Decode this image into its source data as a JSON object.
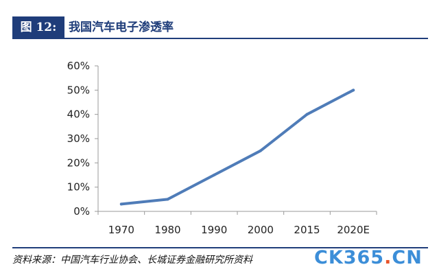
{
  "header": {
    "figure_label": "图 12:",
    "title": "我国汽车电子渗透率"
  },
  "chart_data": {
    "type": "line",
    "categories": [
      "1970",
      "1980",
      "1990",
      "2000",
      "2015",
      "2020E"
    ],
    "values": [
      3,
      5,
      15,
      25,
      40,
      50
    ],
    "y_ticks": [
      "0%",
      "10%",
      "20%",
      "30%",
      "40%",
      "50%",
      "60%"
    ],
    "ylim": [
      0,
      60
    ],
    "line_color": "#4f7cb8",
    "grid": false,
    "legend": "none"
  },
  "source": "资料来源：中国汽车行业协会、长城证券金融研究所资料",
  "watermark": {
    "main": "CK365",
    "dot": ".",
    "suffix": "CN"
  },
  "colors": {
    "brand": "#1f3d7a",
    "watermark_blue": "#3c8ed8",
    "watermark_orange": "#e8542a"
  }
}
